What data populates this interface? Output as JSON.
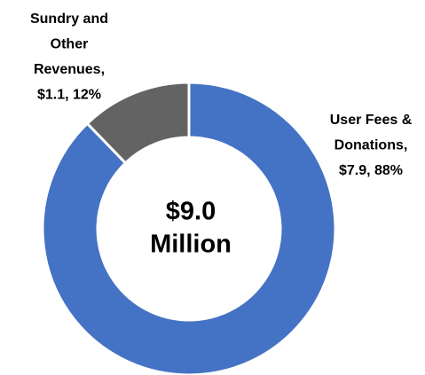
{
  "chart_data": {
    "type": "donut",
    "categories": [
      "User Fees & Donations",
      "Sundry and Other Revenues"
    ],
    "values": [
      7.9,
      1.1
    ],
    "value_labels": [
      [
        "User Fees &",
        "Donations,",
        "$7.9, 88%"
      ],
      [
        "Sundry and",
        "Other",
        "Revenues,",
        "$1.1, 12%"
      ]
    ],
    "colors": [
      "#4472c4",
      "#636363"
    ],
    "center_label": [
      "$9.0",
      "Million"
    ]
  }
}
